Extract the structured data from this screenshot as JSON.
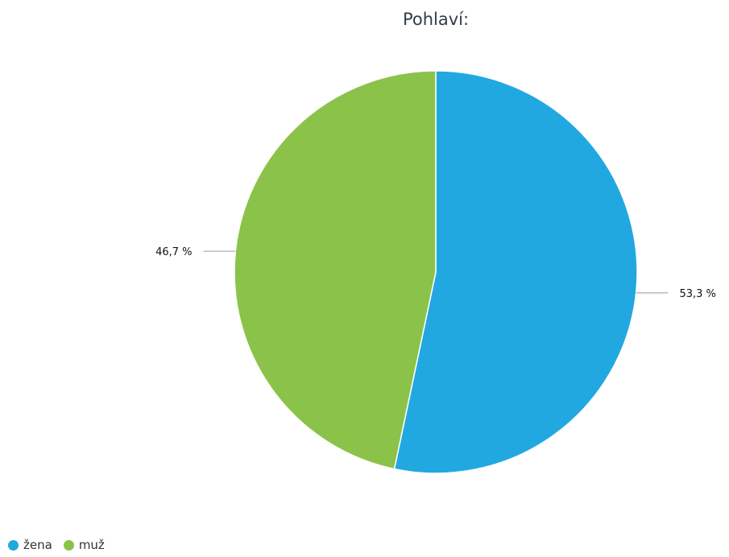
{
  "chart_data": {
    "type": "pie",
    "title": "Pohlaví:",
    "slices": [
      {
        "name": "žena",
        "value": 53.3,
        "label": "53,3 %",
        "color": "#21a8e0"
      },
      {
        "name": "muž",
        "value": 46.7,
        "label": "46,7 %",
        "color": "#8bc34a"
      }
    ],
    "legend_position": "bottom-left"
  }
}
